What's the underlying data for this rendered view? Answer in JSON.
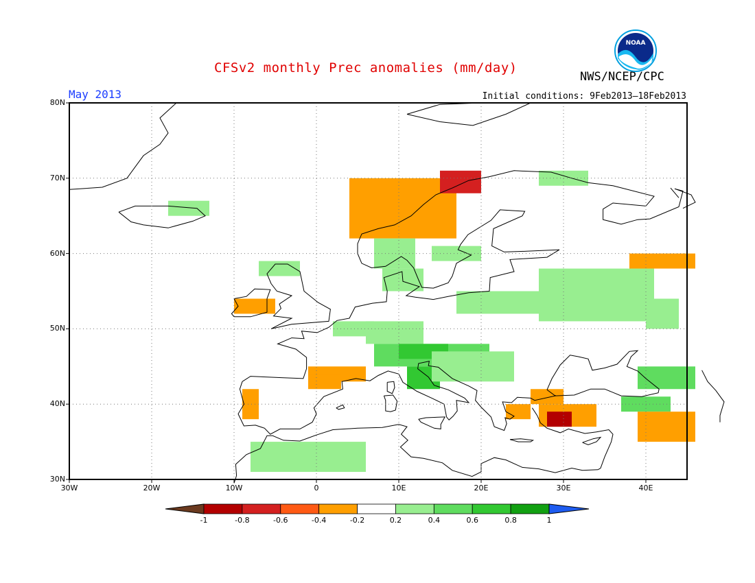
{
  "header": {
    "title": "CFSv2 monthly Prec anomalies (mm/day)",
    "agency": "NWS/NCEP/CPC",
    "logo_text": "NOAA",
    "period": "May 2013",
    "initial_conditions": "Initial conditions: 9Feb2013–18Feb2013"
  },
  "axes": {
    "lat_labels": [
      "80N",
      "70N",
      "60N",
      "50N",
      "40N",
      "30N"
    ],
    "lon_labels": [
      "30W",
      "20W",
      "10W",
      "0",
      "10E",
      "20E",
      "30E",
      "40E"
    ],
    "lon_range": [
      -30,
      45
    ],
    "lat_range": [
      30,
      80
    ]
  },
  "colorbar": {
    "labels": [
      "-1",
      "-0.8",
      "-0.6",
      "-0.4",
      "-0.2",
      "0.2",
      "0.4",
      "0.6",
      "0.8",
      "1"
    ],
    "colors": {
      "below_min": "#6b3a1f",
      "m08": "#b30000",
      "m06": "#d42020",
      "m04": "#ff5a14",
      "m02": "#ff9f00",
      "zero": "#ffffff",
      "p02": "#98ee90",
      "p04": "#5fdc5f",
      "p06": "#32c832",
      "p08": "#12a012",
      "above_max": "#1e5cf0"
    }
  },
  "chart_data": {
    "type": "heatmap",
    "title": "CFSv2 monthly Prec anomalies (mm/day)",
    "units": "mm/day",
    "grid_resolution_deg": 1,
    "bins": [
      {
        "range": "< -1",
        "color": "#6b3a1f"
      },
      {
        "range": "-1 to -0.8",
        "color": "#b30000"
      },
      {
        "range": "-0.8 to -0.6",
        "color": "#d42020"
      },
      {
        "range": "-0.6 to -0.4",
        "color": "#ff5a14"
      },
      {
        "range": "-0.4 to -0.2",
        "color": "#ff9f00"
      },
      {
        "range": "-0.2 to 0.2",
        "color": "#ffffff"
      },
      {
        "range": "0.2 to 0.4",
        "color": "#98ee90"
      },
      {
        "range": "0.4 to 0.6",
        "color": "#5fdc5f"
      },
      {
        "range": "0.6 to 0.8",
        "color": "#32c832"
      },
      {
        "range": "0.8 to 1",
        "color": "#12a012"
      },
      {
        "range": "> 1",
        "color": "#1e5cf0"
      }
    ],
    "anomaly_regions": [
      {
        "name": "iceland-east",
        "value": 0.3,
        "lon": [
          -18,
          -14
        ],
        "lat": [
          65,
          66
        ]
      },
      {
        "name": "ireland-west",
        "value": -0.3,
        "lon": [
          -10,
          -6
        ],
        "lat": [
          52,
          53
        ]
      },
      {
        "name": "scotland",
        "value": 0.3,
        "lon": [
          -7,
          -3
        ],
        "lat": [
          57,
          58
        ]
      },
      {
        "name": "norway-coast",
        "value": -0.3,
        "lon": [
          4,
          16
        ],
        "lat": [
          62,
          69
        ]
      },
      {
        "name": "norway-north",
        "value": -0.7,
        "lon": [
          15,
          19
        ],
        "lat": [
          68,
          70
        ]
      },
      {
        "name": "kola",
        "value": 0.3,
        "lon": [
          27,
          32
        ],
        "lat": [
          69,
          70
        ]
      },
      {
        "name": "norway-south",
        "value": 0.3,
        "lon": [
          7,
          11
        ],
        "lat": [
          58,
          61
        ]
      },
      {
        "name": "denmark",
        "value": 0.3,
        "lon": [
          8,
          12
        ],
        "lat": [
          55,
          57
        ]
      },
      {
        "name": "baltic",
        "value": 0.3,
        "lon": [
          14,
          19
        ],
        "lat": [
          59,
          60
        ]
      },
      {
        "name": "poland-belarus",
        "value": 0.3,
        "lon": [
          17,
          26
        ],
        "lat": [
          52,
          54
        ]
      },
      {
        "name": "russia-west",
        "value": 0.3,
        "lon": [
          27,
          40
        ],
        "lat": [
          51,
          57
        ]
      },
      {
        "name": "russia-east",
        "value": -0.3,
        "lon": [
          38,
          45
        ],
        "lat": [
          58,
          59
        ]
      },
      {
        "name": "russia-east-2",
        "value": 0.3,
        "lon": [
          40,
          43
        ],
        "lat": [
          50,
          53
        ]
      },
      {
        "name": "france-north",
        "value": 0.3,
        "lon": [
          2,
          6
        ],
        "lat": [
          49,
          50
        ]
      },
      {
        "name": "germany-south",
        "value": 0.3,
        "lon": [
          6,
          12
        ],
        "lat": [
          48,
          50
        ]
      },
      {
        "name": "alps",
        "value": 0.4,
        "lon": [
          7,
          20
        ],
        "lat": [
          45,
          47
        ]
      },
      {
        "name": "italy-north",
        "value": 0.7,
        "lon": [
          10,
          15
        ],
        "lat": [
          46,
          47
        ]
      },
      {
        "name": "italy-central",
        "value": 0.7,
        "lon": [
          11,
          14
        ],
        "lat": [
          42,
          44
        ]
      },
      {
        "name": "balkans",
        "value": 0.3,
        "lon": [
          14,
          23
        ],
        "lat": [
          43,
          46
        ]
      },
      {
        "name": "france-south",
        "value": -0.3,
        "lon": [
          -1,
          5
        ],
        "lat": [
          43,
          44
        ]
      },
      {
        "name": "spain-north",
        "value": -0.3,
        "lon": [
          -1,
          2
        ],
        "lat": [
          42,
          43
        ]
      },
      {
        "name": "portugal",
        "value": -0.3,
        "lon": [
          -9,
          -8
        ],
        "lat": [
          38,
          41
        ]
      },
      {
        "name": "morocco",
        "value": 0.3,
        "lon": [
          -8,
          5
        ],
        "lat": [
          31,
          34
        ]
      },
      {
        "name": "greece",
        "value": -0.3,
        "lon": [
          23,
          25
        ],
        "lat": [
          38,
          39
        ]
      },
      {
        "name": "turkey-nw",
        "value": -0.3,
        "lon": [
          26,
          29
        ],
        "lat": [
          40,
          41
        ]
      },
      {
        "name": "turkey-south",
        "value": -0.3,
        "lon": [
          27,
          33
        ],
        "lat": [
          37,
          39
        ]
      },
      {
        "name": "turkey-sw-core",
        "value": -0.9,
        "lon": [
          28,
          30
        ],
        "lat": [
          37,
          38
        ]
      },
      {
        "name": "turkey-east",
        "value": 0.4,
        "lon": [
          37,
          42
        ],
        "lat": [
          39,
          40
        ]
      },
      {
        "name": "caucasus",
        "value": 0.5,
        "lon": [
          39,
          45
        ],
        "lat": [
          42,
          44
        ]
      },
      {
        "name": "iran-iraq",
        "value": -0.3,
        "lon": [
          39,
          45
        ],
        "lat": [
          35,
          38
        ]
      }
    ]
  }
}
